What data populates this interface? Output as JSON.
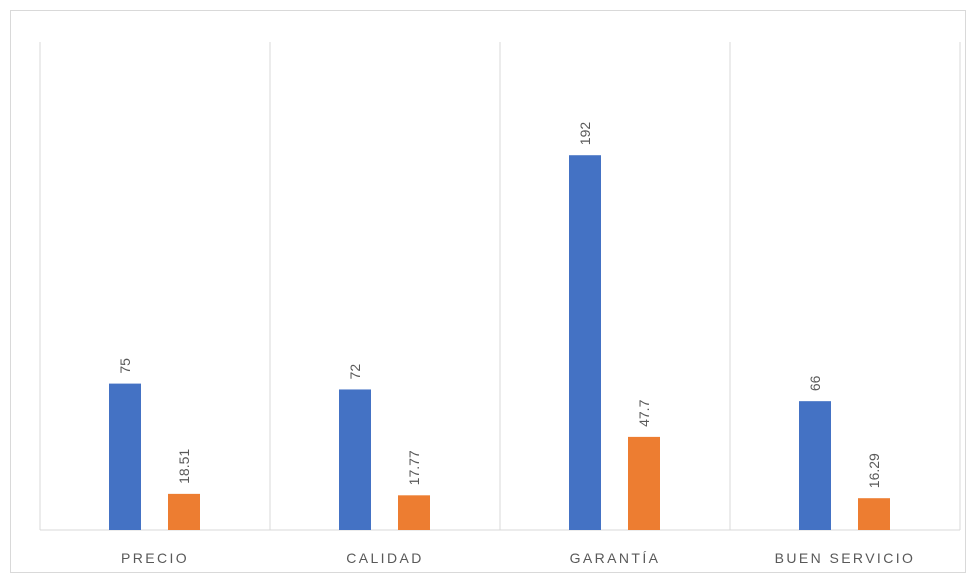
{
  "chart_data": {
    "type": "bar",
    "categories": [
      "PRECIO",
      "CALIDAD",
      "GARANTÍA",
      "BUEN SERVICIO"
    ],
    "series": [
      {
        "color": "#4472c4",
        "values": [
          75,
          72,
          192,
          66
        ]
      },
      {
        "color": "#ed7d31",
        "values": [
          18.51,
          17.77,
          47.7,
          16.29
        ]
      }
    ],
    "ylim": [
      0,
      250
    ]
  }
}
